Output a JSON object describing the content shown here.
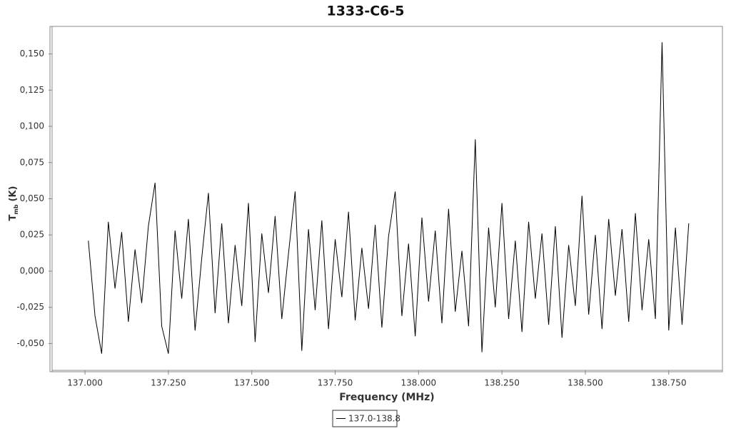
{
  "chart_data": {
    "type": "line",
    "title": "1333-C6-5",
    "x_label": "Frequency (MHz)",
    "y_label": "T",
    "y_label_sub": "mb",
    "y_label_unit": "(K)",
    "x": [
      137.01,
      137.03,
      137.05,
      137.07,
      137.09,
      137.11,
      137.13,
      137.15,
      137.17,
      137.19,
      137.21,
      137.23,
      137.25,
      137.27,
      137.29,
      137.31,
      137.33,
      137.35,
      137.37,
      137.39,
      137.41,
      137.43,
      137.45,
      137.47,
      137.49,
      137.51,
      137.53,
      137.55,
      137.57,
      137.59,
      137.61,
      137.63,
      137.65,
      137.67,
      137.69,
      137.71,
      137.73,
      137.75,
      137.77,
      137.79,
      137.81,
      137.83,
      137.85,
      137.87,
      137.89,
      137.91,
      137.93,
      137.95,
      137.97,
      137.99,
      138.01,
      138.03,
      138.05,
      138.07,
      138.09,
      138.11,
      138.13,
      138.15,
      138.17,
      138.19,
      138.21,
      138.23,
      138.25,
      138.27,
      138.29,
      138.31,
      138.33,
      138.35,
      138.37,
      138.39,
      138.41,
      138.43,
      138.45,
      138.47,
      138.49,
      138.51,
      138.53,
      138.55,
      138.57,
      138.59,
      138.61,
      138.63,
      138.65,
      138.67,
      138.69,
      138.71,
      138.73,
      138.75,
      138.77,
      138.79,
      138.81
    ],
    "series": [
      {
        "name": "137.0-138.8",
        "color": "#000000",
        "values": [
          0.021,
          -0.031,
          -0.057,
          0.034,
          -0.012,
          0.027,
          -0.035,
          0.015,
          -0.022,
          0.031,
          0.061,
          -0.038,
          -0.057,
          0.028,
          -0.019,
          0.036,
          -0.041,
          0.009,
          0.054,
          -0.029,
          0.033,
          -0.036,
          0.018,
          -0.024,
          0.047,
          -0.049,
          0.026,
          -0.015,
          0.038,
          -0.033,
          0.012,
          0.055,
          -0.055,
          0.029,
          -0.027,
          0.035,
          -0.04,
          0.022,
          -0.018,
          0.041,
          -0.034,
          0.016,
          -0.026,
          0.032,
          -0.039,
          0.024,
          0.055,
          -0.031,
          0.019,
          -0.045,
          0.037,
          -0.021,
          0.028,
          -0.036,
          0.043,
          -0.028,
          0.014,
          -0.038,
          0.091,
          -0.056,
          0.03,
          -0.025,
          0.047,
          -0.033,
          0.021,
          -0.042,
          0.034,
          -0.019,
          0.026,
          -0.037,
          0.031,
          -0.046,
          0.018,
          -0.024,
          0.052,
          -0.03,
          0.025,
          -0.04,
          0.036,
          -0.017,
          0.029,
          -0.035,
          0.04,
          -0.027,
          0.022,
          -0.033,
          0.158,
          -0.041,
          0.03,
          -0.037,
          0.033
        ]
      }
    ],
    "xlim": [
      136.895,
      138.911
    ],
    "ylim": [
      -0.0695,
      0.169
    ],
    "xticks": [
      {
        "value": 137,
        "label": "137.000"
      },
      {
        "value": 137.25,
        "label": "137.250"
      },
      {
        "value": 137.5,
        "label": "137.500"
      },
      {
        "value": 137.75,
        "label": "137.750"
      },
      {
        "value": 138,
        "label": "138.000"
      },
      {
        "value": 138.25,
        "label": "138.250"
      },
      {
        "value": 138.5,
        "label": "138.500"
      },
      {
        "value": 138.75,
        "label": "138.750"
      }
    ],
    "yticks": [
      {
        "value": -0.05,
        "label": "-0,050"
      },
      {
        "value": -0.025,
        "label": "-0,025"
      },
      {
        "value": 0,
        "label": "0,000"
      },
      {
        "value": 0.025,
        "label": "0,025"
      },
      {
        "value": 0.05,
        "label": "0,050"
      },
      {
        "value": 0.075,
        "label": "0,075"
      },
      {
        "value": 0.1,
        "label": "0,100"
      },
      {
        "value": 0.125,
        "label": "0,125"
      },
      {
        "value": 0.15,
        "label": "0,150"
      }
    ],
    "legend": "bottom"
  }
}
